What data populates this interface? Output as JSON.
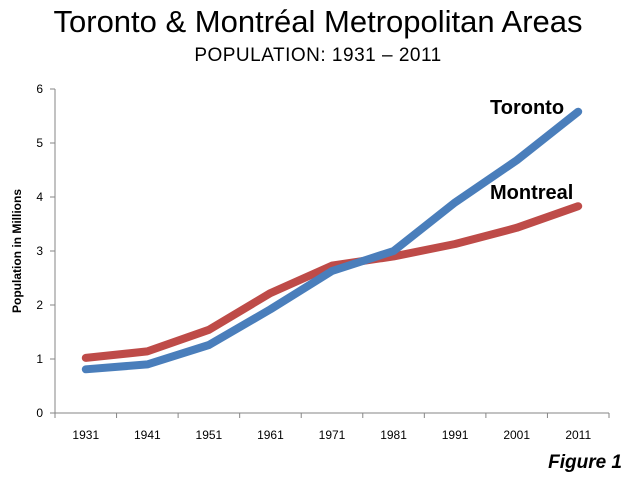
{
  "chart_data": {
    "type": "line",
    "title": "Toronto & Montréal Metropolitan Areas",
    "subtitle": "POPULATION:  1931 – 2011",
    "xlabel": "",
    "ylabel": "Population in Millions",
    "categories": [
      "1931",
      "1941",
      "1951",
      "1961",
      "1971",
      "1981",
      "1991",
      "2001",
      "2011"
    ],
    "ylim": [
      0,
      6
    ],
    "yticks": [
      "0",
      "1",
      "2",
      "3",
      "4",
      "5",
      "6"
    ],
    "grid": false,
    "series": [
      {
        "name": "Toronto",
        "color": "#4a7ebb",
        "values": [
          0.81,
          0.9,
          1.26,
          1.92,
          2.63,
          3.0,
          3.9,
          4.68,
          5.58
        ]
      },
      {
        "name": "Montreal",
        "color": "#be4b48",
        "values": [
          1.02,
          1.14,
          1.54,
          2.22,
          2.73,
          2.9,
          3.13,
          3.43,
          3.83
        ]
      }
    ],
    "figure_label": "Figure 1"
  }
}
